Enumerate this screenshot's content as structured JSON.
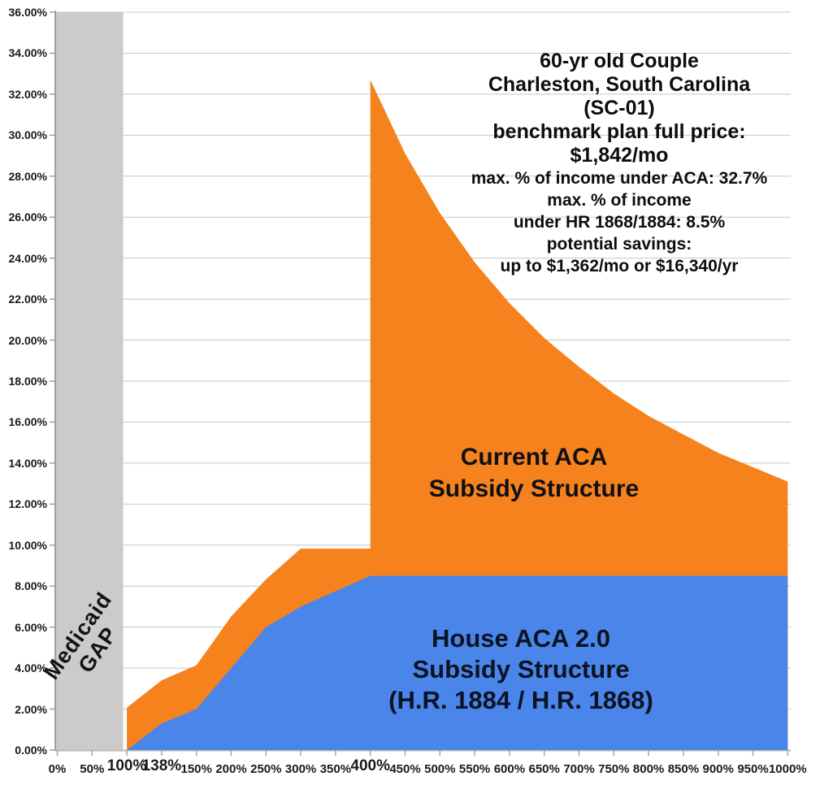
{
  "page": {
    "background": "#ffffff"
  },
  "annotation": {
    "lines_large": [
      "60-yr old Couple",
      "Charleston, South Carolina",
      "(SC-01)",
      "benchmark plan full price:",
      "$1,842/mo"
    ],
    "lines_small": [
      "max. % of income under ACA: 32.7%",
      "max. % of income",
      "under HR 1868/1884: 8.5%",
      "potential savings:",
      "up to $1,362/mo or $16,340/yr"
    ]
  },
  "labels": {
    "aca_area": [
      "Current ACA",
      "Subsidy Structure"
    ],
    "house_area": [
      "House ACA 2.0",
      "Subsidy Structure",
      "(H.R. 1884 / H.R. 1868)"
    ],
    "medicaid_gap": [
      "Medicaid",
      "GAP"
    ]
  },
  "chart_data": {
    "type": "area",
    "x_label_categories": [
      "0%",
      "50%",
      "100%",
      "138%",
      "150%",
      "200%",
      "250%",
      "300%",
      "350%",
      "400%",
      "450%",
      "500%",
      "550%",
      "600%",
      "650%",
      "700%",
      "750%",
      "800%",
      "850%",
      "900%",
      "950%",
      "1000%"
    ],
    "x_axis": {
      "emphasized": [
        "100%",
        "138%",
        "400%"
      ]
    },
    "y_axis": {
      "tick_labels": [
        "36.00%",
        "34.00%",
        "32.00%",
        "30.00%",
        "28.00%",
        "26.00%",
        "24.00%",
        "22.00%",
        "20.00%",
        "18.00%",
        "16.00%",
        "14.00%",
        "12.00%",
        "10.00%",
        "8.00%",
        "6.00%",
        "4.00%",
        "2.00%",
        "0.00%"
      ],
      "min": 0,
      "max": 36,
      "tick_step": 2,
      "unit": "% of income"
    },
    "grid": true,
    "series": [
      {
        "name": "Current ACA Subsidy Structure",
        "color": "#F6821E",
        "values": [
          null,
          null,
          2.07,
          3.4,
          4.14,
          6.52,
          8.33,
          9.83,
          9.83,
          32.7,
          29.1,
          26.2,
          23.8,
          21.8,
          20.1,
          18.7,
          17.4,
          16.3,
          15.4,
          14.5,
          13.8,
          13.1
        ],
        "cliff": {
          "category": "400%",
          "from": 9.83,
          "to": 32.7
        }
      },
      {
        "name": "House ACA 2.0 Subsidy Structure (H.R. 1884 / H.R. 1868)",
        "color": "#4A85E9",
        "values": [
          null,
          null,
          0,
          1.3,
          2.0,
          4.0,
          6.0,
          7.0,
          7.75,
          8.5,
          8.5,
          8.5,
          8.5,
          8.5,
          8.5,
          8.5,
          8.5,
          8.5,
          8.5,
          8.5,
          8.5,
          8.5
        ]
      }
    ],
    "medicaid_gap_band": {
      "label": "Medicaid GAP",
      "from_category": "0%",
      "to_category": "100%",
      "color": "#CBCBCB"
    },
    "gridline_color": "#C7C7C7",
    "axis_color": "#999999"
  }
}
